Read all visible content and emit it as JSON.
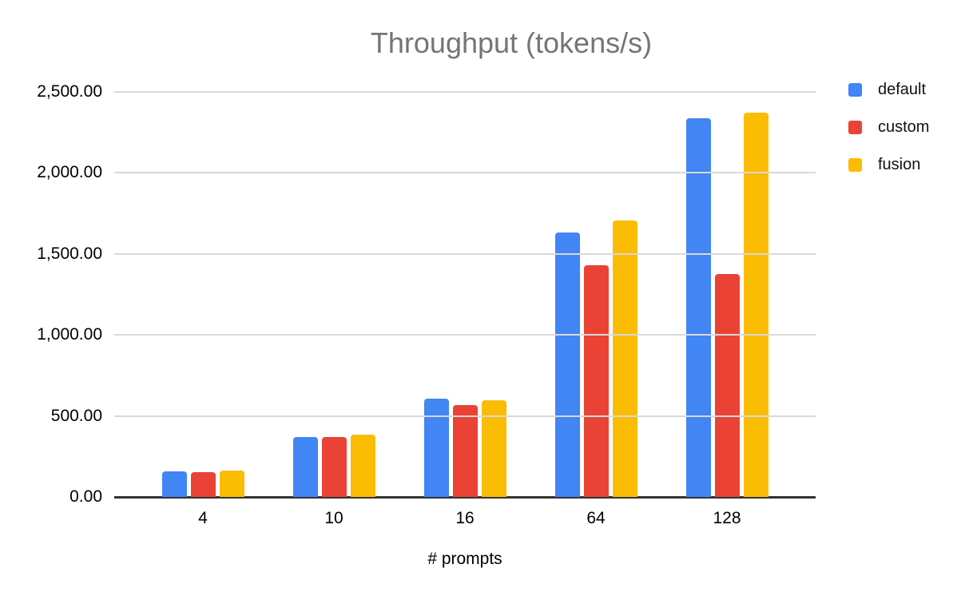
{
  "chart_data": {
    "type": "bar",
    "title": "Throughput (tokens/s)",
    "xlabel": "# prompts",
    "ylabel": "",
    "categories": [
      "4",
      "10",
      "16",
      "64",
      "128"
    ],
    "series": [
      {
        "name": "default",
        "color": "#4285F4",
        "values": [
          156,
          368,
          605,
          1632,
          2339
        ]
      },
      {
        "name": "custom",
        "color": "#EA4335",
        "values": [
          154,
          372,
          568,
          1430,
          1377
        ]
      },
      {
        "name": "fusion",
        "color": "#FBBC04",
        "values": [
          165,
          386,
          597,
          1706,
          2373
        ]
      }
    ],
    "ylim": [
      0,
      2500
    ],
    "ytick_step": 500,
    "ytick_labels": [
      "0.00",
      "500.00",
      "1,000.00",
      "1,500.00",
      "2,000.00",
      "2,500.00"
    ],
    "grid": true,
    "legend_position": "right",
    "colors": {
      "title_text": "#757575",
      "axis_text": "#000000",
      "gridline": "#d9d9d9",
      "axis_line": "#333333",
      "background": "#ffffff"
    }
  }
}
